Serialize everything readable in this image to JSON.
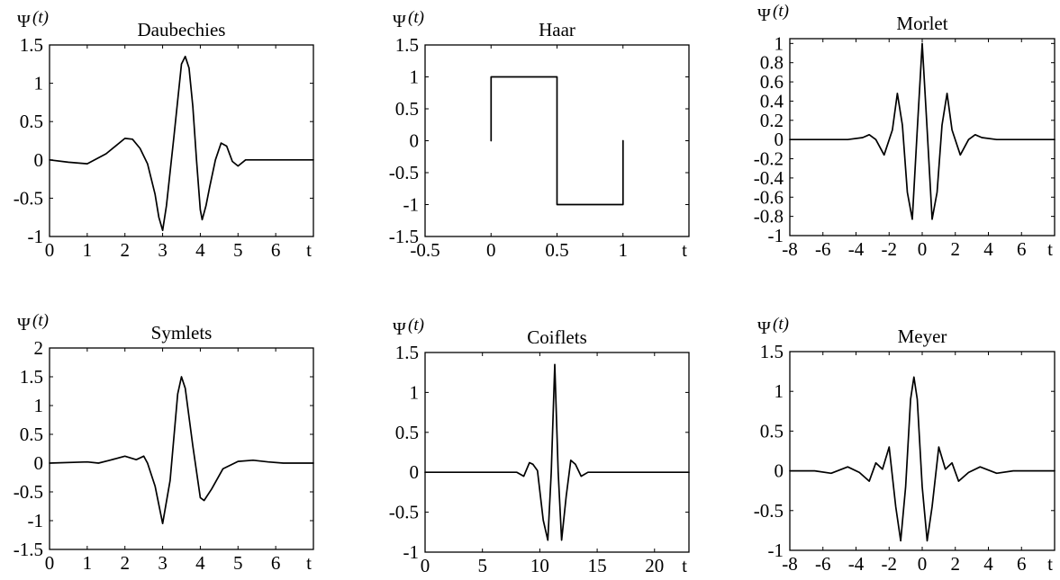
{
  "chart_data": [
    {
      "type": "line",
      "title": "Daubechies",
      "ylabel_symbol": "Ψ",
      "ylabel_arg": "(t)",
      "xlabel": "t",
      "xlim": [
        0,
        7
      ],
      "ylim": [
        -1,
        1.5
      ],
      "xticks": [
        0,
        1,
        2,
        3,
        4,
        5,
        6
      ],
      "xtick_labels": [
        "0",
        "1",
        "2",
        "3",
        "4",
        "5",
        "6"
      ],
      "yticks": [
        1.5,
        1,
        0.5,
        0,
        -0.5,
        -1
      ],
      "ytick_labels": [
        "1.5",
        "1",
        "0.5",
        "0",
        "-0.5",
        "-1"
      ],
      "grid": false,
      "x": [
        0,
        0.5,
        1.0,
        1.5,
        2.0,
        2.2,
        2.4,
        2.6,
        2.8,
        2.9,
        3.0,
        3.1,
        3.3,
        3.5,
        3.6,
        3.7,
        3.8,
        3.9,
        4.0,
        4.05,
        4.15,
        4.25,
        4.4,
        4.55,
        4.7,
        4.85,
        5.0,
        5.2,
        5.4,
        6.0,
        7.0
      ],
      "y": [
        0,
        -0.03,
        -0.05,
        0.08,
        0.28,
        0.27,
        0.15,
        -0.05,
        -0.45,
        -0.75,
        -0.92,
        -0.6,
        0.3,
        1.25,
        1.35,
        1.2,
        0.7,
        0.0,
        -0.65,
        -0.78,
        -0.6,
        -0.35,
        0.0,
        0.22,
        0.18,
        -0.02,
        -0.08,
        0.0,
        0.0,
        0.0,
        0.0
      ]
    },
    {
      "type": "line",
      "title": "Haar",
      "ylabel_symbol": "Ψ",
      "ylabel_arg": "(t)",
      "xlabel": "t",
      "xlim": [
        -0.5,
        1.5
      ],
      "ylim": [
        -1.5,
        1.5
      ],
      "xticks": [
        -0.5,
        0,
        0.5,
        1
      ],
      "xtick_labels": [
        "-0.5",
        "0",
        "0.5",
        "1"
      ],
      "yticks": [
        1.5,
        1,
        0.5,
        0,
        -0.5,
        -1,
        -1.5
      ],
      "ytick_labels": [
        "1.5",
        "1",
        "0.5",
        "0",
        "-0.5",
        "-1",
        "-1.5"
      ],
      "grid": false,
      "x": [
        0,
        0,
        0.5,
        0.5,
        1,
        1
      ],
      "y": [
        0,
        1,
        1,
        -1,
        -1,
        0
      ]
    },
    {
      "type": "line",
      "title": "Morlet",
      "ylabel_symbol": "Ψ",
      "ylabel_arg": "(t)",
      "xlabel": "t",
      "xlim": [
        -8,
        8
      ],
      "ylim": [
        -1,
        1.05
      ],
      "xticks": [
        -8,
        -6,
        -4,
        -2,
        0,
        2,
        4,
        6
      ],
      "xtick_labels": [
        "-8",
        "-6",
        "-4",
        "-2",
        "0",
        "2",
        "4",
        "6"
      ],
      "yticks": [
        1,
        0.8,
        0.6,
        0.4,
        0.2,
        0,
        -0.2,
        -0.4,
        -0.6,
        -0.8,
        -1
      ],
      "ytick_labels": [
        "1",
        "0.8",
        "0.6",
        "0.4",
        "0.2",
        "0",
        "-0.2",
        "-0.4",
        "-0.6",
        "-0.8",
        "-1"
      ],
      "grid": false,
      "x": [
        -8,
        -4.5,
        -3.6,
        -3.2,
        -2.8,
        -2.3,
        -1.8,
        -1.5,
        -1.2,
        -0.9,
        -0.6,
        -0.3,
        0,
        0.3,
        0.6,
        0.9,
        1.2,
        1.5,
        1.8,
        2.3,
        2.8,
        3.2,
        3.6,
        4.5,
        8
      ],
      "y": [
        0,
        0,
        0.02,
        0.05,
        0.0,
        -0.16,
        0.1,
        0.48,
        0.15,
        -0.55,
        -0.83,
        0.1,
        1.0,
        0.1,
        -0.83,
        -0.55,
        0.15,
        0.48,
        0.1,
        -0.16,
        0.0,
        0.05,
        0.02,
        0,
        0
      ]
    },
    {
      "type": "line",
      "title": "Symlets",
      "ylabel_symbol": "Ψ",
      "ylabel_arg": "(t)",
      "xlabel": "t",
      "xlim": [
        0,
        7
      ],
      "ylim": [
        -1.5,
        2
      ],
      "xticks": [
        0,
        1,
        2,
        3,
        4,
        5,
        6
      ],
      "xtick_labels": [
        "0",
        "1",
        "2",
        "3",
        "4",
        "5",
        "6"
      ],
      "yticks": [
        2,
        1.5,
        1,
        0.5,
        0,
        -0.5,
        -1,
        -1.5
      ],
      "ytick_labels": [
        "2",
        "1.5",
        "1",
        "0.5",
        "0",
        "-0.5",
        "-1",
        "-1.5"
      ],
      "grid": false,
      "x": [
        0,
        1.0,
        1.3,
        1.6,
        2.0,
        2.3,
        2.5,
        2.6,
        2.8,
        3.0,
        3.2,
        3.4,
        3.5,
        3.6,
        3.8,
        4.0,
        4.1,
        4.3,
        4.6,
        5.0,
        5.4,
        5.8,
        6.2,
        7.0
      ],
      "y": [
        0,
        0.02,
        0.0,
        0.05,
        0.12,
        0.06,
        0.12,
        0.0,
        -0.4,
        -1.05,
        -0.3,
        1.2,
        1.5,
        1.3,
        0.3,
        -0.6,
        -0.65,
        -0.45,
        -0.1,
        0.03,
        0.05,
        0.02,
        0.0,
        0.0
      ]
    },
    {
      "type": "line",
      "title": "Coiflets",
      "ylabel_symbol": "Ψ",
      "ylabel_arg": "(t)",
      "xlabel": "t",
      "xlim": [
        0,
        23
      ],
      "ylim": [
        -1,
        1.5
      ],
      "xticks": [
        0,
        5,
        10,
        15,
        20
      ],
      "xtick_labels": [
        "0",
        "5",
        "10",
        "15",
        "20"
      ],
      "yticks": [
        1.5,
        1,
        0.5,
        0,
        -0.5,
        -1
      ],
      "ytick_labels": [
        "1.5",
        "1",
        "0.5",
        "0",
        "-0.5",
        "-1"
      ],
      "grid": false,
      "x": [
        0,
        7.0,
        8.0,
        8.6,
        9.1,
        9.4,
        9.8,
        10.3,
        10.7,
        11.0,
        11.3,
        11.6,
        11.9,
        12.3,
        12.7,
        13.1,
        13.6,
        14.2,
        15.0,
        23.0
      ],
      "y": [
        0,
        0.0,
        0.0,
        -0.05,
        0.12,
        0.1,
        0.02,
        -0.6,
        -0.85,
        0.0,
        1.35,
        0.0,
        -0.85,
        -0.3,
        0.15,
        0.1,
        -0.05,
        0.0,
        0.0,
        0.0
      ]
    },
    {
      "type": "line",
      "title": "Meyer",
      "ylabel_symbol": "Ψ",
      "ylabel_arg": "(t)",
      "xlabel": "t",
      "xlim": [
        -8,
        8
      ],
      "ylim": [
        -1,
        1.5
      ],
      "xticks": [
        -8,
        -6,
        -4,
        -2,
        0,
        2,
        4,
        6
      ],
      "xtick_labels": [
        "-8",
        "-6",
        "-4",
        "-2",
        "0",
        "2",
        "4",
        "6"
      ],
      "yticks": [
        1.5,
        1,
        0.5,
        0,
        -0.5,
        -1
      ],
      "ytick_labels": [
        "1.5",
        "1",
        "0.5",
        "0",
        "-0.5",
        "-1"
      ],
      "grid": false,
      "x": [
        -8,
        -6.5,
        -5.5,
        -4.5,
        -3.8,
        -3.2,
        -2.8,
        -2.4,
        -2.0,
        -1.6,
        -1.3,
        -1.0,
        -0.7,
        -0.5,
        -0.3,
        0.0,
        0.3,
        0.6,
        1.0,
        1.4,
        1.8,
        2.2,
        2.8,
        3.5,
        4.5,
        5.5,
        6.5,
        8.0
      ],
      "y": [
        0,
        0.0,
        -0.03,
        0.05,
        -0.02,
        -0.13,
        0.1,
        0.02,
        0.3,
        -0.45,
        -0.88,
        -0.2,
        0.9,
        1.18,
        0.9,
        -0.2,
        -0.88,
        -0.45,
        0.3,
        0.02,
        0.1,
        -0.13,
        -0.02,
        0.05,
        -0.03,
        0.0,
        0.0,
        0.0
      ]
    }
  ]
}
